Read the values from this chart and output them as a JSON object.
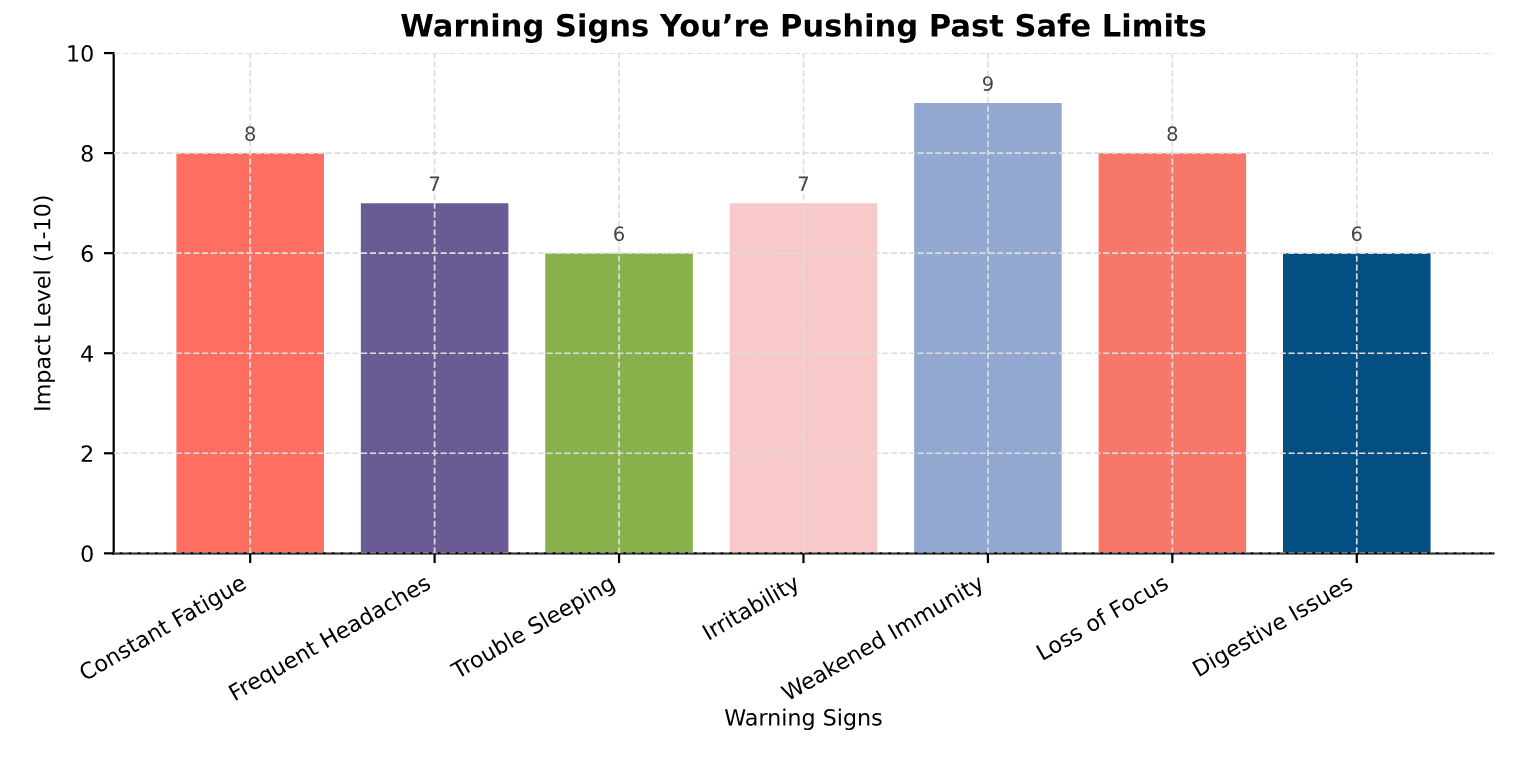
{
  "chart_data": {
    "type": "bar",
    "title": "Warning Signs You’re Pushing Past Safe Limits",
    "xlabel": "Warning Signs",
    "ylabel": "Impact Level (1-10)",
    "categories": [
      "Constant Fatigue",
      "Frequent Headaches",
      "Trouble Sleeping",
      "Irritability",
      "Weakened Immunity",
      "Loss of Focus",
      "Digestive Issues"
    ],
    "values": [
      8,
      7,
      6,
      7,
      9,
      8,
      6
    ],
    "colors": [
      "#ff6f61",
      "#6b5b95",
      "#88b04b",
      "#f7cac9",
      "#92a8d1",
      "#f7786b",
      "#034f84"
    ],
    "ylim": [
      0,
      10
    ],
    "yticks": [
      0,
      2,
      4,
      6,
      8,
      10
    ],
    "grid": true,
    "data_labels": true
  }
}
